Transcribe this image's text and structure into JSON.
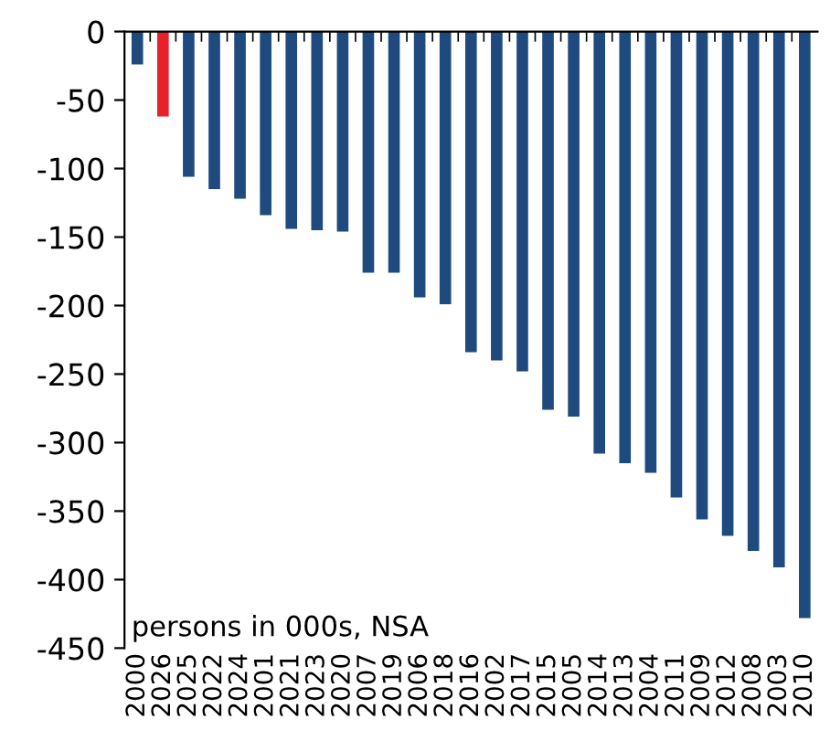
{
  "chart_data": {
    "type": "bar",
    "categories": [
      "2000",
      "2026",
      "2025",
      "2022",
      "2024",
      "2001",
      "2021",
      "2023",
      "2020",
      "2007",
      "2019",
      "2006",
      "2018",
      "2016",
      "2002",
      "2017",
      "2015",
      "2005",
      "2014",
      "2013",
      "2004",
      "2011",
      "2009",
      "2012",
      "2008",
      "2003",
      "2010"
    ],
    "values": [
      -24,
      -62,
      -106,
      -115,
      -122,
      -134,
      -144,
      -145,
      -146,
      -176,
      -176,
      -194,
      -199,
      -234,
      -240,
      -248,
      -276,
      -281,
      -308,
      -315,
      -322,
      -340,
      -356,
      -368,
      -379,
      -391,
      -428
    ],
    "colors": [
      "#1f4a7e",
      "#e8202a",
      "#1f4a7e",
      "#1f4a7e",
      "#1f4a7e",
      "#1f4a7e",
      "#1f4a7e",
      "#1f4a7e",
      "#1f4a7e",
      "#1f4a7e",
      "#1f4a7e",
      "#1f4a7e",
      "#1f4a7e",
      "#1f4a7e",
      "#1f4a7e",
      "#1f4a7e",
      "#1f4a7e",
      "#1f4a7e",
      "#1f4a7e",
      "#1f4a7e",
      "#1f4a7e",
      "#1f4a7e",
      "#1f4a7e",
      "#1f4a7e",
      "#1f4a7e",
      "#1f4a7e",
      "#1f4a7e"
    ],
    "ylim": [
      -450,
      0
    ],
    "yticks": [
      0,
      -50,
      -100,
      -150,
      -200,
      -250,
      -300,
      -350,
      -400,
      -450
    ],
    "annotations": [
      "persons in 000s, NSA"
    ],
    "grid": false,
    "legend": false
  }
}
